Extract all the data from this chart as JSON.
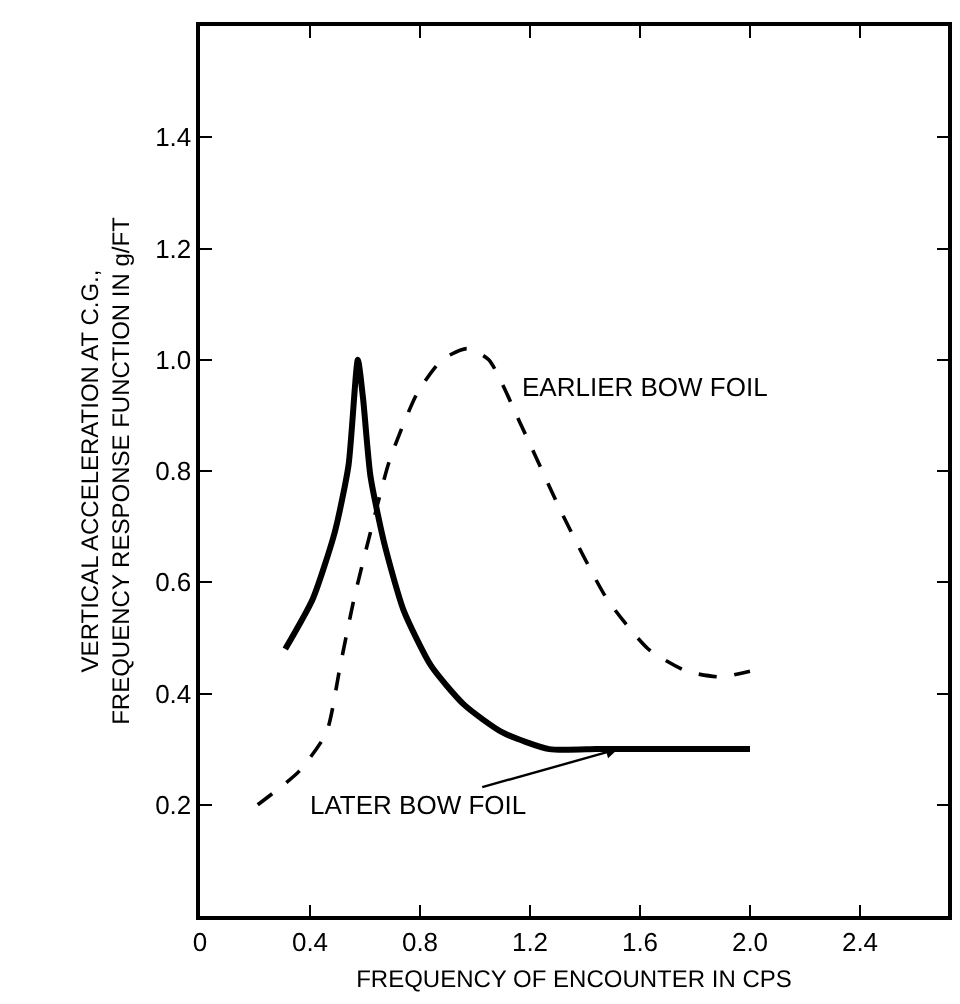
{
  "chart_data": {
    "type": "line",
    "xlabel": "FREQUENCY OF ENCOUNTER IN CPS",
    "ylabel": "VERTICAL ACCELERATION AT C.G.,\nFREQUENCY RESPONSE FUNCTION IN g/FT",
    "xlim": [
      0,
      2.72
    ],
    "ylim": [
      0,
      1.6
    ],
    "xticks": [
      0,
      0.4,
      0.8,
      1.2,
      1.6,
      {
        "value": 2,
        "label": "2.0"
      },
      2.4
    ],
    "yticks": [
      0.2,
      0.4,
      0.6,
      0.8,
      {
        "value": 1,
        "label": "1.0"
      },
      1.2,
      1.4
    ],
    "legend": false,
    "marker": "none",
    "series": [
      {
        "name": "LATER BOW FOIL",
        "color": "#000000",
        "line_style": "solid",
        "x": [
          0.31,
          0.41,
          0.49,
          0.54,
          0.574,
          0.593,
          0.62,
          0.67,
          0.74,
          0.84,
          0.96,
          1.1,
          1.27,
          1.44,
          1.52,
          2.0
        ],
        "values": [
          0.48,
          0.57,
          0.69,
          0.81,
          1.0,
          0.93,
          0.79,
          0.67,
          0.55,
          0.45,
          0.38,
          0.33,
          0.3,
          0.3,
          0.3,
          0.3
        ]
      },
      {
        "name": "EARLIER BOW FOIL",
        "color": "#000000",
        "line_style": "dashed",
        "x": [
          0.21,
          0.36,
          0.46,
          0.51,
          0.56,
          0.62,
          0.69,
          0.79,
          0.88,
          0.97,
          1.05,
          1.17,
          1.32,
          1.48,
          1.63,
          1.77,
          1.89,
          2.0
        ],
        "values": [
          0.2,
          0.26,
          0.33,
          0.45,
          0.57,
          0.69,
          0.82,
          0.94,
          1.0,
          1.02,
          1.0,
          0.88,
          0.72,
          0.57,
          0.48,
          0.44,
          0.43,
          0.44
        ]
      }
    ]
  }
}
